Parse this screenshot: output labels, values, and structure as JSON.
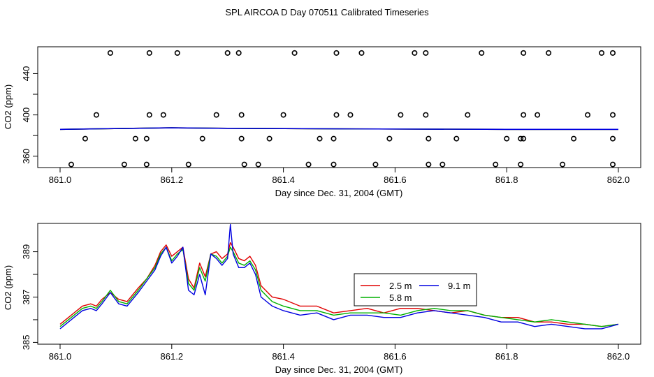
{
  "title": "SPL AIRCOA D  Day 070511  Calibrated Timeseries",
  "colors": {
    "series_2_5m": "#e00000",
    "series_5_8m": "#00b000",
    "series_9_1m": "#0000e0",
    "axis": "#000000",
    "points": "#000000"
  },
  "chart_data": [
    {
      "type": "scatter",
      "panel": "top",
      "title": "",
      "xlabel": "Day since Dec. 31, 2004 (GMT)",
      "ylabel": "CO2 (ppm)",
      "xlim": [
        861.0,
        862.0
      ],
      "ylim": [
        349,
        466
      ],
      "xticks": [
        861.0,
        861.2,
        861.4,
        861.6,
        861.8,
        862.0
      ],
      "xtick_labels": [
        "861.0",
        "861.2",
        "861.4",
        "861.6",
        "861.8",
        "862.0"
      ],
      "yticks": [
        360,
        400,
        440
      ],
      "ytick_labels": [
        "360",
        "400",
        "440"
      ],
      "points": [
        {
          "x": 861.09,
          "y": 460
        },
        {
          "x": 861.16,
          "y": 460
        },
        {
          "x": 861.21,
          "y": 460
        },
        {
          "x": 861.3,
          "y": 460
        },
        {
          "x": 861.32,
          "y": 460
        },
        {
          "x": 861.42,
          "y": 460
        },
        {
          "x": 861.495,
          "y": 460
        },
        {
          "x": 861.54,
          "y": 460
        },
        {
          "x": 861.635,
          "y": 460
        },
        {
          "x": 861.655,
          "y": 460
        },
        {
          "x": 861.755,
          "y": 460
        },
        {
          "x": 861.83,
          "y": 460
        },
        {
          "x": 861.875,
          "y": 460
        },
        {
          "x": 861.97,
          "y": 460
        },
        {
          "x": 861.99,
          "y": 460
        },
        {
          "x": 861.065,
          "y": 400
        },
        {
          "x": 861.16,
          "y": 400
        },
        {
          "x": 861.185,
          "y": 400
        },
        {
          "x": 861.28,
          "y": 400
        },
        {
          "x": 861.325,
          "y": 400
        },
        {
          "x": 861.4,
          "y": 400
        },
        {
          "x": 861.495,
          "y": 400
        },
        {
          "x": 861.52,
          "y": 400
        },
        {
          "x": 861.61,
          "y": 400
        },
        {
          "x": 861.655,
          "y": 400
        },
        {
          "x": 861.73,
          "y": 400
        },
        {
          "x": 861.83,
          "y": 400
        },
        {
          "x": 861.855,
          "y": 400
        },
        {
          "x": 861.945,
          "y": 400
        },
        {
          "x": 861.99,
          "y": 400
        },
        {
          "x": 861.045,
          "y": 377
        },
        {
          "x": 861.135,
          "y": 377
        },
        {
          "x": 861.155,
          "y": 377
        },
        {
          "x": 861.255,
          "y": 377
        },
        {
          "x": 861.325,
          "y": 377
        },
        {
          "x": 861.375,
          "y": 377
        },
        {
          "x": 861.465,
          "y": 377
        },
        {
          "x": 861.49,
          "y": 377
        },
        {
          "x": 861.59,
          "y": 377
        },
        {
          "x": 861.66,
          "y": 377
        },
        {
          "x": 861.71,
          "y": 377
        },
        {
          "x": 861.8,
          "y": 377
        },
        {
          "x": 861.825,
          "y": 377
        },
        {
          "x": 861.83,
          "y": 377
        },
        {
          "x": 861.92,
          "y": 377
        },
        {
          "x": 861.99,
          "y": 377
        },
        {
          "x": 861.02,
          "y": 352
        },
        {
          "x": 861.115,
          "y": 352
        },
        {
          "x": 861.155,
          "y": 352
        },
        {
          "x": 861.23,
          "y": 352
        },
        {
          "x": 861.33,
          "y": 352
        },
        {
          "x": 861.355,
          "y": 352
        },
        {
          "x": 861.445,
          "y": 352
        },
        {
          "x": 861.49,
          "y": 352
        },
        {
          "x": 861.565,
          "y": 352
        },
        {
          "x": 861.66,
          "y": 352
        },
        {
          "x": 861.685,
          "y": 352
        },
        {
          "x": 861.78,
          "y": 352
        },
        {
          "x": 861.825,
          "y": 352
        },
        {
          "x": 861.9,
          "y": 352
        },
        {
          "x": 861.99,
          "y": 352
        }
      ],
      "series": [
        {
          "name": "2.5 m",
          "color_key": "series_2_5m",
          "x": [
            861.0,
            861.2,
            861.3,
            861.5,
            861.8,
            862.0
          ],
          "values": [
            386.0,
            387.5,
            387.0,
            386.5,
            386.0,
            386.0
          ]
        },
        {
          "name": "5.8 m",
          "color_key": "series_5_8m",
          "x": [
            861.0,
            861.2,
            861.3,
            861.5,
            861.8,
            862.0
          ],
          "values": [
            386.0,
            387.5,
            387.0,
            386.5,
            386.0,
            386.0
          ]
        },
        {
          "name": "9.1 m",
          "color_key": "series_9_1m",
          "x": [
            861.0,
            861.2,
            861.3,
            861.5,
            861.8,
            862.0
          ],
          "values": [
            386.0,
            387.5,
            387.0,
            386.5,
            386.0,
            386.0
          ]
        }
      ]
    },
    {
      "type": "line",
      "panel": "bottom",
      "title": "",
      "xlabel": "Day since Dec. 31, 2004 (GMT)",
      "ylabel": "CO2 (ppm)",
      "xlim": [
        861.0,
        862.0
      ],
      "ylim": [
        384.92,
        390.25
      ],
      "xticks": [
        861.0,
        861.2,
        861.4,
        861.6,
        861.8,
        862.0
      ],
      "xtick_labels": [
        "861.0",
        "861.2",
        "861.4",
        "861.6",
        "861.8",
        "862.0"
      ],
      "yticks": [
        385,
        387,
        389
      ],
      "ytick_labels": [
        "385",
        "387",
        "389"
      ],
      "legend": {
        "position": "center-right",
        "entries": [
          "2.5 m",
          "9.1 m",
          "5.8 m"
        ]
      },
      "x": [
        861.0,
        861.02,
        861.04,
        861.055,
        861.065,
        861.075,
        861.09,
        861.105,
        861.12,
        861.14,
        861.155,
        861.17,
        861.18,
        861.19,
        861.2,
        861.21,
        861.22,
        861.23,
        861.24,
        861.25,
        861.26,
        861.27,
        861.28,
        861.29,
        861.3,
        861.305,
        861.31,
        861.32,
        861.33,
        861.34,
        861.35,
        861.36,
        861.38,
        861.4,
        861.43,
        861.46,
        861.49,
        861.52,
        861.55,
        861.58,
        861.61,
        861.64,
        861.67,
        861.7,
        861.73,
        861.76,
        861.79,
        861.82,
        861.85,
        861.88,
        861.91,
        861.94,
        861.97,
        862.0
      ],
      "series": [
        {
          "name": "2.5 m",
          "color_key": "series_2_5m",
          "values": [
            385.8,
            386.2,
            386.6,
            386.7,
            386.6,
            386.9,
            387.2,
            386.9,
            386.8,
            387.4,
            387.8,
            388.4,
            389.0,
            389.3,
            388.8,
            389.0,
            389.2,
            387.8,
            387.4,
            388.5,
            387.9,
            388.9,
            389.0,
            388.7,
            388.9,
            389.4,
            389.2,
            388.7,
            388.6,
            388.8,
            388.4,
            387.5,
            387.0,
            386.9,
            386.6,
            386.6,
            386.3,
            386.4,
            386.5,
            386.3,
            386.5,
            386.5,
            386.4,
            386.3,
            386.4,
            386.2,
            386.1,
            386.1,
            385.9,
            385.9,
            385.8,
            385.8,
            385.7,
            385.8
          ]
        },
        {
          "name": "5.8 m",
          "color_key": "series_5_8m",
          "values": [
            385.7,
            386.1,
            386.5,
            386.6,
            386.5,
            386.8,
            387.3,
            386.8,
            386.7,
            387.3,
            387.8,
            388.3,
            388.9,
            389.2,
            388.6,
            388.9,
            389.1,
            387.6,
            387.3,
            388.3,
            387.7,
            388.9,
            388.8,
            388.5,
            388.8,
            389.2,
            389.0,
            388.5,
            388.4,
            388.6,
            388.2,
            387.3,
            386.8,
            386.6,
            386.4,
            386.4,
            386.2,
            386.3,
            386.3,
            386.3,
            386.2,
            386.4,
            386.5,
            386.4,
            386.4,
            386.2,
            386.1,
            386.0,
            385.9,
            386.0,
            385.9,
            385.8,
            385.7,
            385.8
          ]
        },
        {
          "name": "9.1 m",
          "color_key": "series_9_1m",
          "values": [
            385.6,
            386.0,
            386.4,
            386.5,
            386.4,
            386.7,
            387.2,
            386.7,
            386.6,
            387.2,
            387.7,
            388.2,
            388.8,
            389.2,
            388.5,
            388.8,
            389.2,
            387.3,
            387.1,
            388.0,
            387.1,
            388.9,
            388.7,
            388.4,
            388.7,
            390.2,
            388.9,
            388.3,
            388.3,
            388.5,
            388.0,
            387.0,
            386.6,
            386.4,
            386.2,
            386.3,
            386.0,
            386.2,
            386.2,
            386.1,
            386.1,
            386.3,
            386.4,
            386.3,
            386.2,
            386.1,
            385.9,
            385.9,
            385.7,
            385.8,
            385.7,
            385.6,
            385.6,
            385.8
          ]
        }
      ]
    }
  ]
}
